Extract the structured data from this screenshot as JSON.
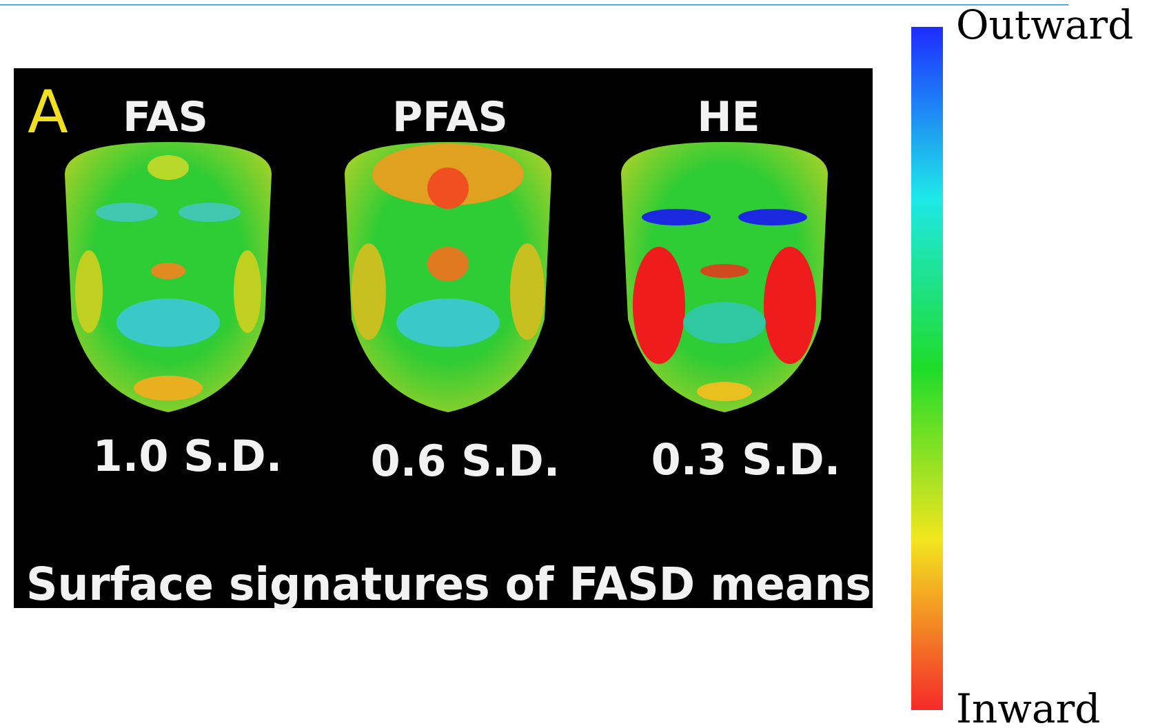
{
  "figure": {
    "panel_label": "A",
    "faces": [
      {
        "title": "FAS",
        "value_label": "1.0 S.D."
      },
      {
        "title": "PFAS",
        "value_label": "0.6 S.D."
      },
      {
        "title": "HE",
        "value_label": "0.3 S.D."
      }
    ],
    "caption": "Surface signatures of FASD means"
  },
  "colorbar": {
    "top_label": "Outward",
    "bottom_label": "Inward"
  }
}
